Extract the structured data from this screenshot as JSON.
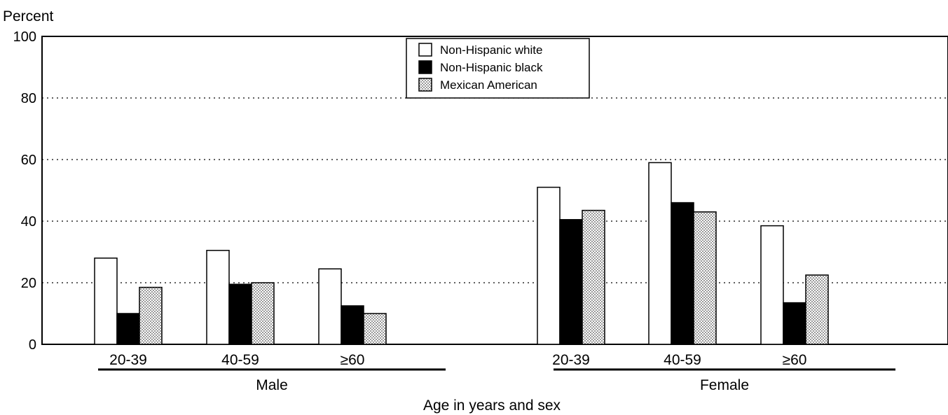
{
  "chart_data": {
    "type": "bar",
    "title": "",
    "ylabel": "Percent",
    "xlabel": "Age in years and sex",
    "ylim": [
      0,
      100
    ],
    "yticks": [
      0,
      20,
      40,
      60,
      80,
      100
    ],
    "grid": "dotted horizontal lines",
    "legend_position": "top-center",
    "groups": [
      {
        "name": "Male",
        "categories": [
          "20-39",
          "40-59",
          "≥60"
        ]
      },
      {
        "name": "Female",
        "categories": [
          "20-39",
          "40-59",
          "≥60"
        ]
      }
    ],
    "series": [
      {
        "name": "Non-Hispanic white",
        "fill": "white",
        "values": [
          28,
          30.5,
          24.5,
          51,
          59,
          38.5
        ]
      },
      {
        "name": "Non-Hispanic black",
        "fill": "black",
        "values": [
          10,
          19.5,
          12.5,
          40.5,
          46,
          13.5
        ]
      },
      {
        "name": "Mexican American",
        "fill": "stipple",
        "values": [
          18.5,
          20,
          10,
          43.5,
          43,
          22.5
        ]
      }
    ]
  }
}
